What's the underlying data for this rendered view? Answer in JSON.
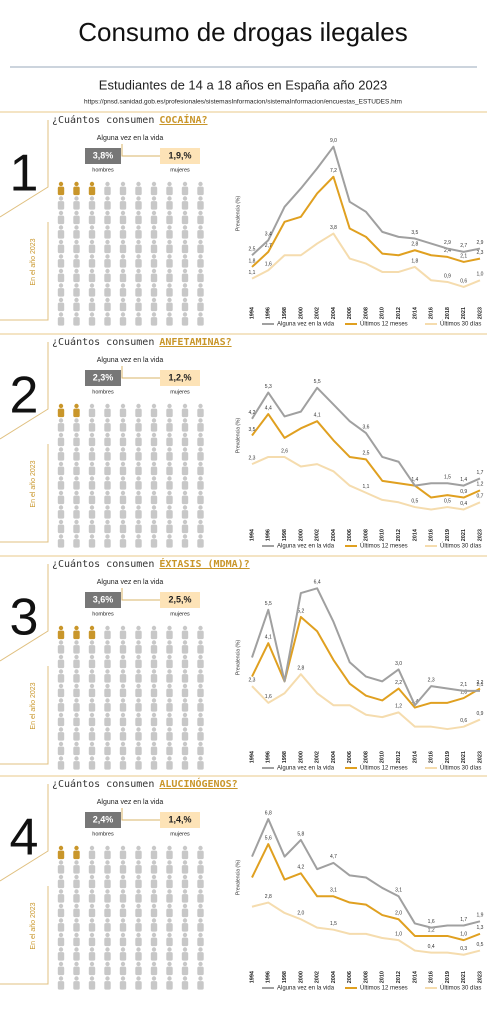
{
  "header": {
    "title": "Consumo de drogas ilegales",
    "subtitle": "Estudiantes de 14 a 18 años en España año 2023",
    "source": "https://pnsd.sanidad.gob.es/profesionales/sistemasInformacion/sistemaInformacion/encuestas_ESTUDES.htm"
  },
  "sections": [
    {
      "number": "1",
      "question": "¿Cuántos consumen",
      "drug": "COCAÍNA?",
      "life_label": "Alguna vez en la vida",
      "men_value": "3,8%",
      "men_label": "hombres",
      "women_value": "1,9,%",
      "women_label": "mujeres",
      "year_label": "En el año 2023",
      "highlighted_icons": 3
    },
    {
      "number": "2",
      "question": "¿Cuántos consumen",
      "drug": "ANFETAMINAS?",
      "life_label": "Alguna vez en la vida",
      "men_value": "2,3%",
      "men_label": "hombres",
      "women_value": "1,2,%",
      "women_label": "mujeres",
      "year_label": "En el año 2023",
      "highlighted_icons": 2
    },
    {
      "number": "3",
      "question": "¿Cuántos consumen",
      "drug": "ÉXTASIS (MDMA)?",
      "life_label": "Alguna vez en la vida",
      "men_value": "3,6%",
      "men_label": "hombres",
      "women_value": "2,5,%",
      "women_label": "mujeres",
      "year_label": "En el año 2023",
      "highlighted_icons": 3
    },
    {
      "number": "4",
      "question": "¿Cuántos consumen",
      "drug": "ALUCINÓGENOS?",
      "life_label": "Alguna vez en la vida",
      "men_value": "2,4%",
      "men_label": "hombres",
      "women_value": "1,4,%",
      "women_label": "mujeres",
      "year_label": "En el año 2023",
      "highlighted_icons": 2
    }
  ],
  "chart_data": [
    {
      "type": "line",
      "y_label": "Prevalencia (%)",
      "ylim": [
        0,
        10
      ],
      "categories": [
        "1994",
        "1996",
        "1998",
        "2000",
        "2002",
        "2004",
        "2006",
        "2008",
        "2010",
        "2012",
        "2014",
        "2016",
        "2018",
        "2021",
        "2023"
      ],
      "series": [
        {
          "name": "Alguna vez en la vida",
          "color": "#a0a0a0",
          "values": [
            2.5,
            3.4,
            5.4,
            6.5,
            7.7,
            9.0,
            5.7,
            5.1,
            3.9,
            3.6,
            3.5,
            3.2,
            2.9,
            2.7,
            2.9
          ],
          "value_labels": [
            "2,5",
            "3,4",
            null,
            null,
            null,
            "9,0",
            null,
            null,
            null,
            null,
            "3,5",
            null,
            "2,9",
            "2,7",
            "2,9"
          ]
        },
        {
          "name": "Últimos 12 meses",
          "color": "#e0a020",
          "values": [
            1.8,
            2.7,
            4.5,
            4.8,
            6.2,
            7.2,
            4.1,
            3.6,
            2.6,
            2.5,
            2.8,
            2.5,
            2.4,
            2.1,
            2.3
          ],
          "value_labels": [
            "1,8",
            "2,7",
            null,
            null,
            null,
            "7,2",
            null,
            null,
            null,
            null,
            "2,8",
            null,
            "2,4",
            "2,1",
            "2,3"
          ]
        },
        {
          "name": "Últimos 30 días",
          "color": "#f5dcae",
          "values": [
            1.1,
            1.6,
            2.5,
            2.5,
            3.2,
            3.8,
            2.3,
            2.0,
            1.5,
            1.5,
            1.8,
            1.0,
            0.9,
            0.6,
            1.0
          ],
          "value_labels": [
            "1,1",
            "1,6",
            null,
            null,
            null,
            "3,8",
            null,
            null,
            null,
            null,
            "1,8",
            null,
            "0,9",
            "0,6",
            "1,0"
          ]
        }
      ]
    },
    {
      "type": "line",
      "y_label": "Prevalencia (%)",
      "ylim": [
        0,
        7
      ],
      "categories": [
        "1994",
        "1996",
        "1998",
        "2000",
        "2002",
        "2004",
        "2006",
        "2008",
        "2010",
        "2012",
        "2014",
        "2016",
        "2019",
        "2021",
        "2023"
      ],
      "series": [
        {
          "name": "Alguna vez en la vida",
          "color": "#a0a0a0",
          "values": [
            4.2,
            5.3,
            4.3,
            4.5,
            5.5,
            4.8,
            4.1,
            3.6,
            2.6,
            2.4,
            1.4,
            1.5,
            1.5,
            1.4,
            1.7
          ],
          "value_labels": [
            "4,2",
            "5,3",
            null,
            null,
            "5,5",
            null,
            null,
            "3,6",
            null,
            null,
            null,
            null,
            "1,5",
            "1,4",
            "1,7"
          ]
        },
        {
          "name": "Últimos 12 meses",
          "color": "#e0a020",
          "values": [
            3.5,
            4.4,
            3.4,
            3.8,
            4.1,
            3.3,
            2.6,
            2.5,
            1.6,
            1.5,
            1.4,
            0.9,
            1.0,
            0.9,
            1.2
          ],
          "value_labels": [
            "3,5",
            "4,4",
            null,
            null,
            "4,1",
            null,
            null,
            "2,5",
            null,
            null,
            "1,4",
            null,
            null,
            "0,9",
            "1,2"
          ]
        },
        {
          "name": "Últimos 30 días",
          "color": "#f5dcae",
          "values": [
            2.3,
            2.6,
            2.6,
            2.2,
            2.3,
            2.0,
            1.4,
            1.1,
            0.8,
            0.7,
            0.5,
            0.4,
            0.5,
            0.4,
            0.7
          ],
          "value_labels": [
            "2,3",
            null,
            "2,6",
            null,
            null,
            null,
            null,
            "1,1",
            null,
            null,
            "0,5",
            null,
            "0,5",
            "0,4",
            "0,7"
          ]
        }
      ]
    },
    {
      "type": "line",
      "y_label": "Prevalencia (%)",
      "ylim": [
        0,
        7
      ],
      "categories": [
        "1994",
        "1996",
        "1998",
        "2000",
        "2002",
        "2004",
        "2006",
        "2008",
        "2010",
        "2012",
        "2014",
        "2016",
        "2019",
        "2021",
        "2023"
      ],
      "series": [
        {
          "name": "Alguna vez en la vida",
          "color": "#a0a0a0",
          "values": [
            3.5,
            5.5,
            2.5,
            6.2,
            6.4,
            5.0,
            3.3,
            2.7,
            2.5,
            3.0,
            1.5,
            2.3,
            2.2,
            2.1,
            2.1
          ],
          "value_labels": [
            null,
            "5,5",
            null,
            null,
            "6,4",
            null,
            null,
            null,
            null,
            "3,0",
            null,
            "2,3",
            null,
            "2,1",
            "2,1"
          ]
        },
        {
          "name": "Últimos 12 meses",
          "color": "#e0a020",
          "values": [
            2.7,
            4.1,
            2.5,
            5.2,
            4.6,
            3.4,
            2.4,
            1.9,
            1.7,
            2.2,
            1.4,
            1.6,
            1.6,
            1.8,
            2.2
          ],
          "value_labels": [
            null,
            "4,1",
            null,
            "5,2",
            null,
            null,
            null,
            null,
            null,
            "2,2",
            "1,4",
            null,
            null,
            "1,8",
            "2,2"
          ]
        },
        {
          "name": "Últimos 30 días",
          "color": "#f5dcae",
          "values": [
            2.3,
            1.6,
            2.0,
            2.8,
            2.0,
            1.5,
            1.5,
            1.1,
            1.0,
            1.2,
            0.6,
            0.6,
            0.5,
            0.6,
            0.9
          ],
          "value_labels": [
            "2,3",
            "1,6",
            null,
            "2,8",
            null,
            null,
            null,
            null,
            null,
            "1,2",
            null,
            null,
            null,
            "0,6",
            "0,9"
          ]
        }
      ]
    },
    {
      "type": "line",
      "y_label": "Prevalencia (%)",
      "ylim": [
        0,
        8
      ],
      "categories": [
        "1994",
        "1996",
        "1998",
        "2000",
        "2002",
        "2004",
        "2006",
        "2008",
        "2010",
        "2012",
        "2014",
        "2016",
        "2019",
        "2021",
        "2023"
      ],
      "series": [
        {
          "name": "Alguna vez en la vida",
          "color": "#a0a0a0",
          "values": [
            5.0,
            6.8,
            5.0,
            5.8,
            4.4,
            4.7,
            4.1,
            4.0,
            3.5,
            3.1,
            1.8,
            1.6,
            1.7,
            1.7,
            1.9
          ],
          "value_labels": [
            null,
            "6,8",
            null,
            "5,8",
            null,
            "4,7",
            null,
            null,
            null,
            "3,1",
            null,
            "1,6",
            null,
            "1,7",
            "1,9"
          ]
        },
        {
          "name": "Últimos 12 meses",
          "color": "#e0a020",
          "values": [
            4.0,
            5.6,
            3.9,
            4.2,
            3.1,
            3.1,
            2.8,
            2.7,
            2.2,
            2.0,
            1.2,
            1.2,
            1.2,
            1.0,
            1.3
          ],
          "value_labels": [
            null,
            "5,6",
            null,
            "4,2",
            null,
            "3,1",
            null,
            null,
            null,
            "2,0",
            null,
            "1,2",
            null,
            "1,0",
            "1,3"
          ]
        },
        {
          "name": "Últimos 30 días",
          "color": "#f5dcae",
          "values": [
            2.6,
            2.8,
            2.3,
            2.0,
            1.6,
            1.5,
            1.3,
            1.3,
            1.1,
            1.0,
            0.5,
            0.4,
            0.4,
            0.3,
            0.5
          ],
          "value_labels": [
            null,
            "2,8",
            null,
            "2,0",
            null,
            "1,5",
            null,
            null,
            null,
            "1,0",
            null,
            "0,4",
            null,
            "0,3",
            "0,5"
          ]
        }
      ]
    }
  ]
}
